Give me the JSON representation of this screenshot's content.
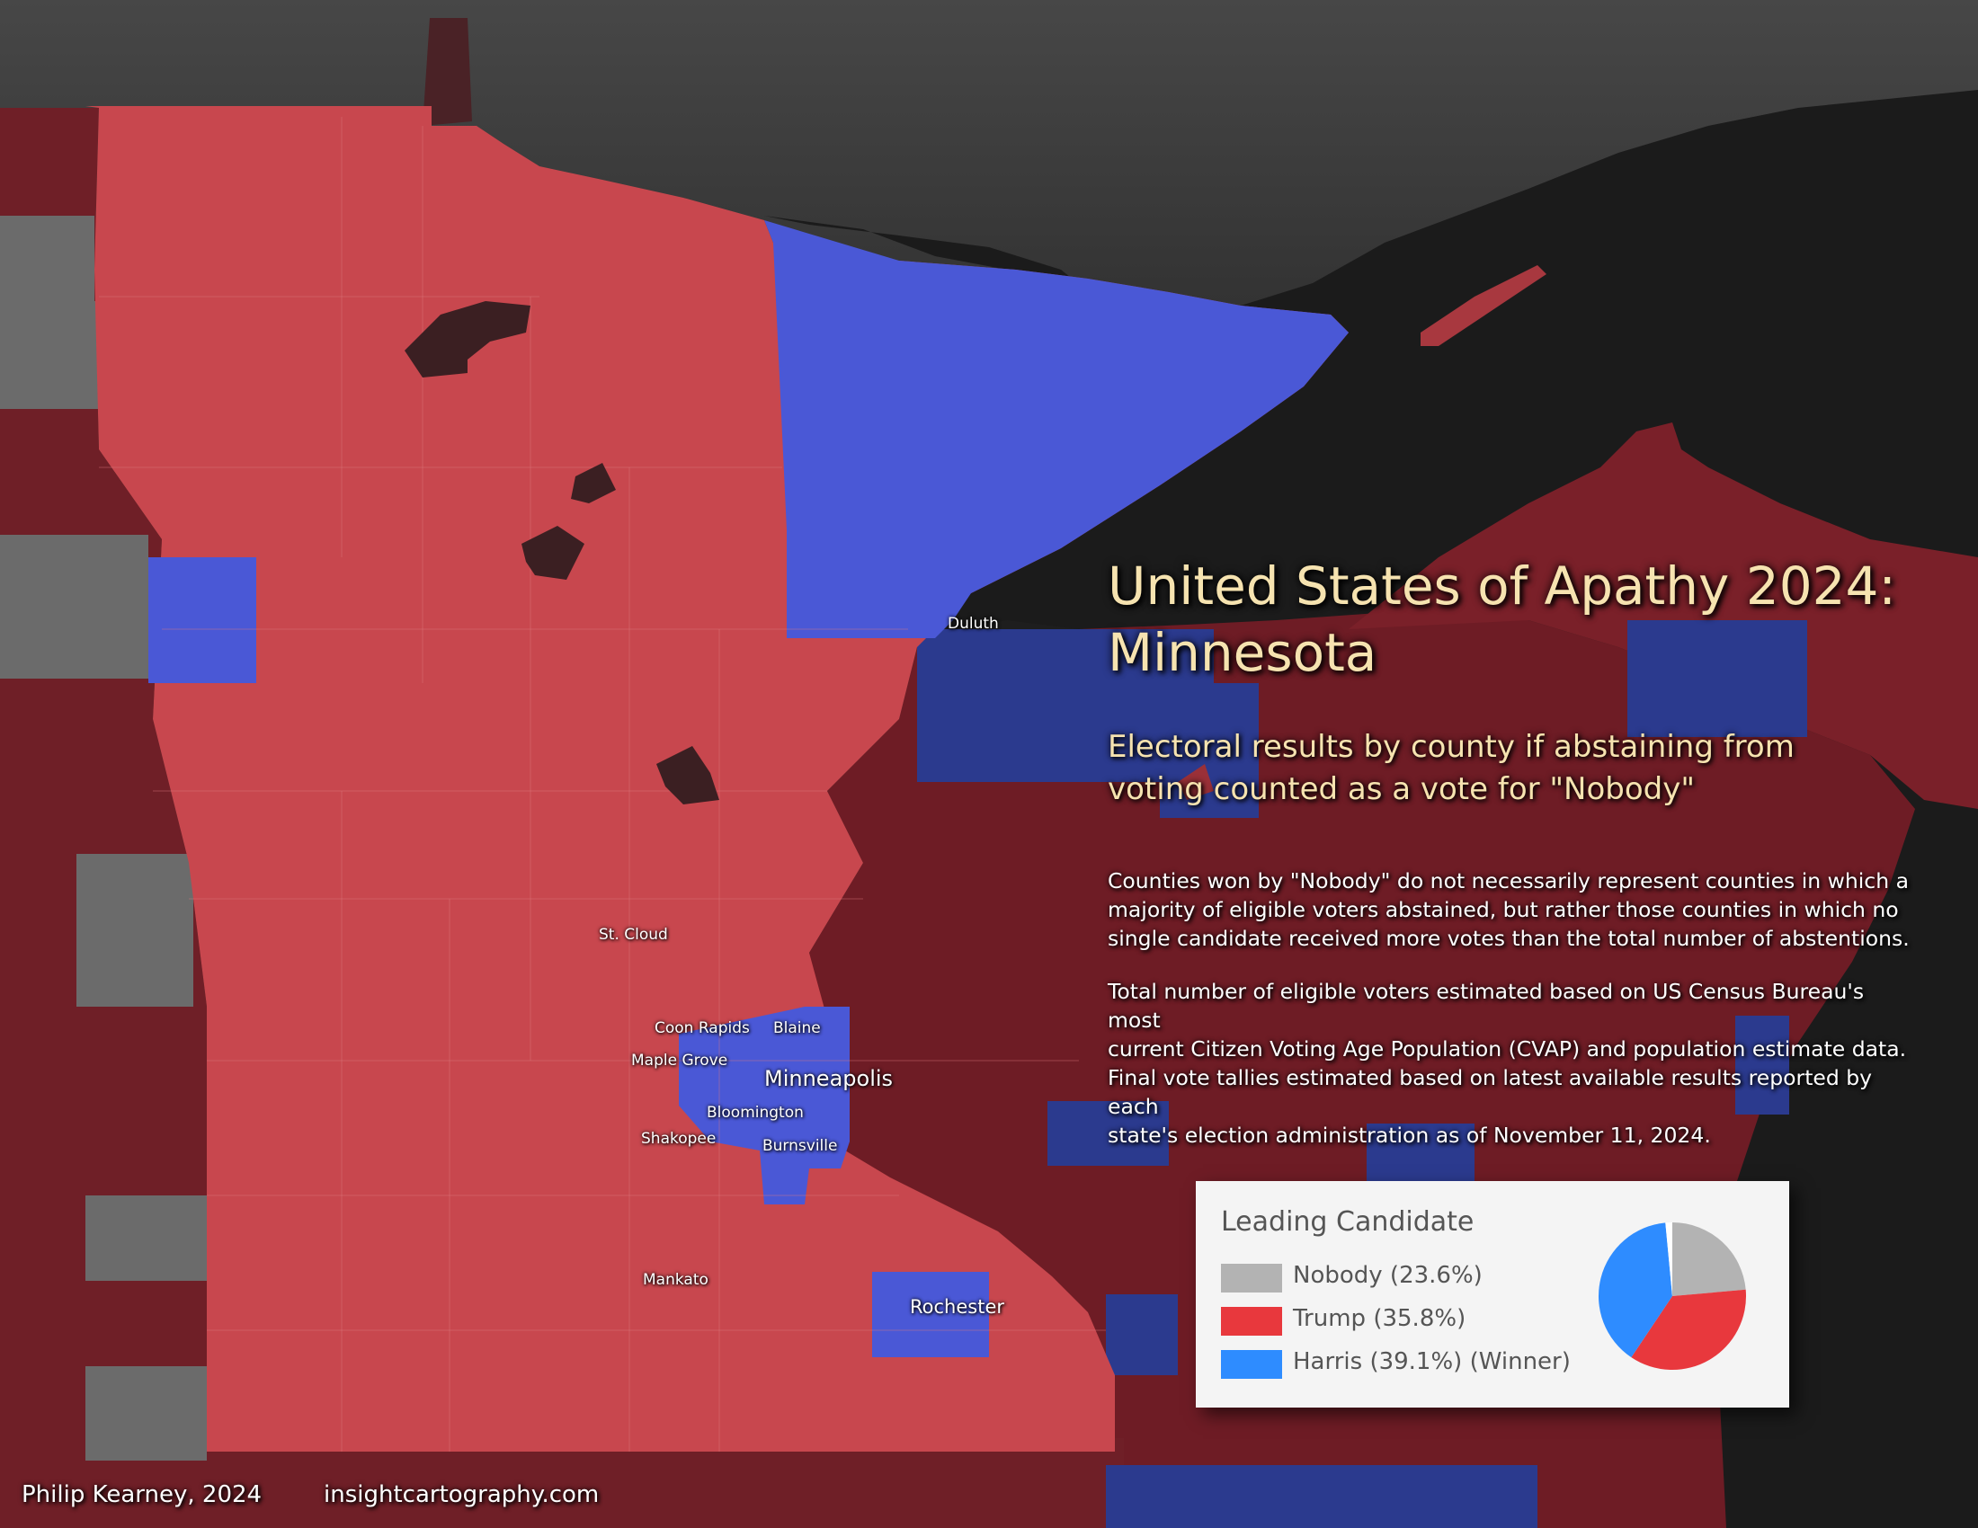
{
  "title_line1": "United States of Apathy 2024:",
  "title_line2": "Minnesota",
  "subtitle_line1": "Electoral results by county if abstaining from",
  "subtitle_line2": "voting counted as a vote for \"Nobody\"",
  "note1": "Counties won by \"Nobody\" do not necessarily represent counties in which a\nmajority of eligible voters abstained, but rather those counties in which no\nsingle candidate received more votes than the total number of abstentions.",
  "note2": "Total number of eligible voters estimated based on US Census Bureau's most\ncurrent Citizen Voting Age Population (CVAP) and population estimate data.\nFinal vote tallies estimated based on latest available results reported by each\nstate's election administration as of November 11, 2024.",
  "cities": {
    "duluth": "Duluth",
    "st_cloud": "St. Cloud",
    "coon_rapids": "Coon Rapids",
    "blaine": "Blaine",
    "maple_grove": "Maple Grove",
    "minneapolis": "Minneapolis",
    "bloomington": "Bloomington",
    "shakopee": "Shakopee",
    "burnsville": "Burnsville",
    "mankato": "Mankato",
    "rochester": "Rochester"
  },
  "footer": {
    "author": "Philip Kearney, 2024",
    "website": "insightcartography.com"
  },
  "legend": {
    "title": "Leading Candidate",
    "items": [
      {
        "label": "Nobody (23.6%)",
        "color": "#b3b3b3",
        "share": 23.6
      },
      {
        "label": "Trump (35.8%)",
        "color": "#e8383d",
        "share": 35.8
      },
      {
        "label": "Harris (39.1%) (Winner)",
        "color": "#2e8cff",
        "share": 39.1
      }
    ],
    "other_share": 1.5,
    "other_color": "#ffffff"
  },
  "colors": {
    "minnesota_red": "#c8474e",
    "minnesota_blue": "#4a58d6",
    "neighbor_red": "#7a1f28",
    "neighbor_blue": "#2b3a8e",
    "nobody_gray": "#6e6e6e",
    "water": "#1c1c1c",
    "canada_land": "#3a3a3a"
  }
}
